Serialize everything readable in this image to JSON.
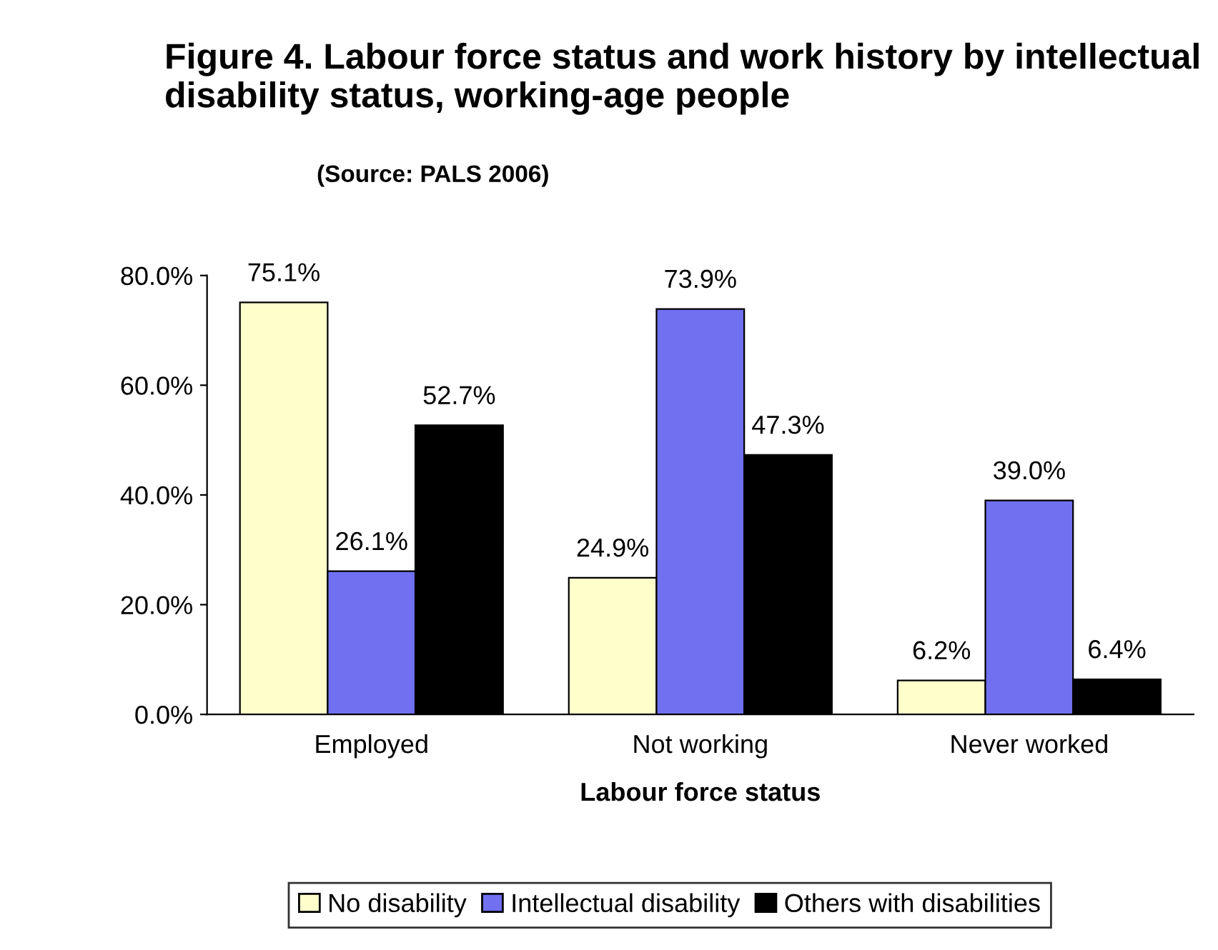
{
  "chart_data": {
    "type": "bar",
    "title": "Figure 4. Labour force status and work history by intellectual disability status, working-age people",
    "annotations": [
      "(Source: PALS 2006)"
    ],
    "xlabel": "Labour force status",
    "categories": [
      "Employed",
      "Not working",
      "Never worked"
    ],
    "series": [
      {
        "name": "No disability",
        "color": "#ffffcc",
        "values": [
          75.1,
          24.9,
          6.2
        ],
        "value_labels": [
          "75.1%",
          "24.9%",
          "6.2%"
        ]
      },
      {
        "name": "Intellectual disability",
        "color": "#7070f0",
        "values": [
          26.1,
          73.9,
          39.0
        ],
        "value_labels": [
          "26.1%",
          "73.9%",
          "39.0%"
        ]
      },
      {
        "name": "Others with disabilities",
        "color": "#000000",
        "values": [
          52.7,
          47.3,
          6.4
        ],
        "value_labels": [
          "52.7%",
          "47.3%",
          "6.4%"
        ]
      }
    ],
    "ylim": [
      0,
      80
    ],
    "yticks": [
      {
        "value": 0,
        "label": "0.0%"
      },
      {
        "value": 20,
        "label": "20.0%"
      },
      {
        "value": 40,
        "label": "40.0%"
      },
      {
        "value": 60,
        "label": "60.0%"
      },
      {
        "value": 80,
        "label": "80.0%"
      }
    ],
    "legend": "bottom"
  }
}
